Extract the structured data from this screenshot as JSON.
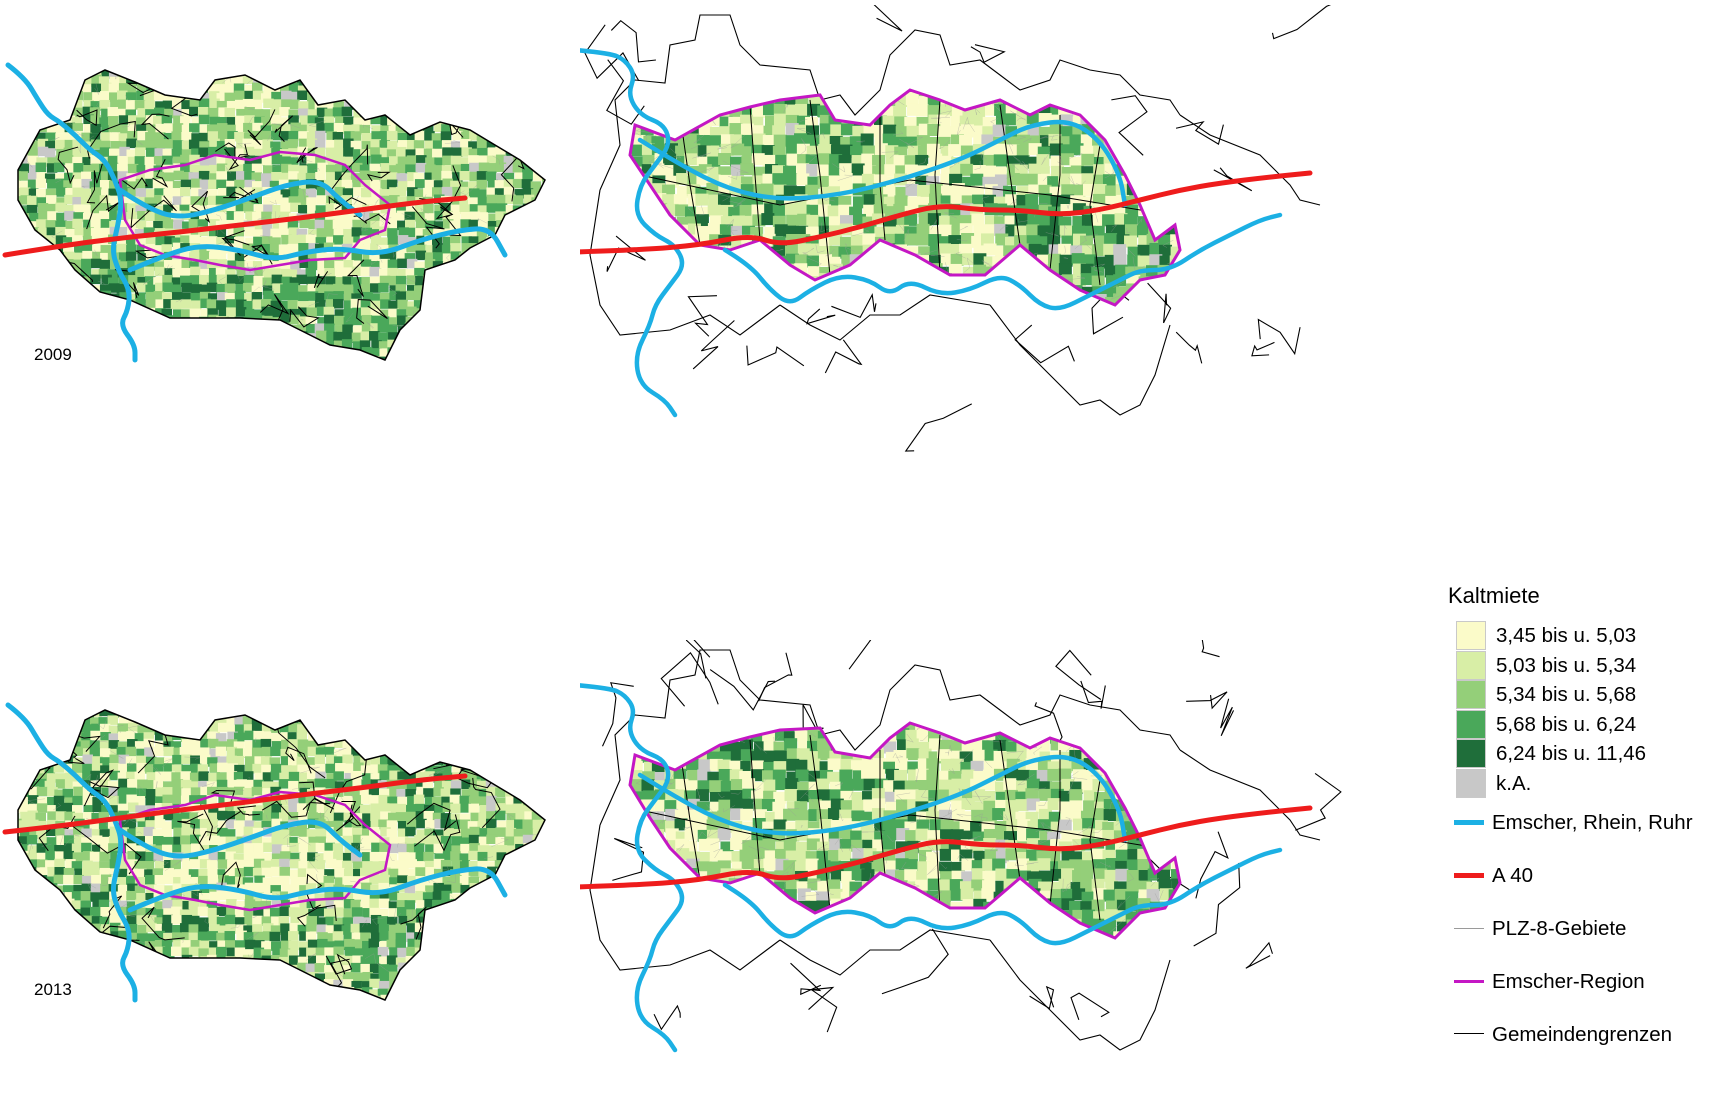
{
  "colors": {
    "river": "#1cb0e4",
    "a40": "#ee1c1c",
    "region": "#c417c4",
    "boundary": "#000000",
    "plz_line": "#9a9a9a"
  },
  "maps": [
    {
      "year": "2009"
    },
    {
      "year": "2013"
    }
  ],
  "legend": {
    "title": "Kaltmiete",
    "classes": [
      {
        "label": "3,45 bis u. 5,03",
        "color": "#fbfbc9"
      },
      {
        "label": "5,03 bis u. 5,34",
        "color": "#d8eea6"
      },
      {
        "label": "5,34 bis u. 5,68",
        "color": "#94cf79"
      },
      {
        "label": "5,68 bis u. 6,24",
        "color": "#4aa85a"
      },
      {
        "label": "6,24 bis u. 11,46",
        "color": "#1f6e3a"
      },
      {
        "label": "k.A.",
        "color": "#c8c8c8"
      }
    ],
    "lines": [
      {
        "label": "Emscher, Rhein, Ruhr",
        "color": "#1cb0e4",
        "width": 5
      },
      {
        "label": "A 40",
        "color": "#ee1c1c",
        "width": 5
      },
      {
        "label": "PLZ-8-Gebiete",
        "color": "#9a9a9a",
        "width": 1
      },
      {
        "label": "Emscher-Region",
        "color": "#c417c4",
        "width": 3
      },
      {
        "label": "Gemeindengrenzen",
        "color": "#000000",
        "width": 1.5
      }
    ]
  }
}
